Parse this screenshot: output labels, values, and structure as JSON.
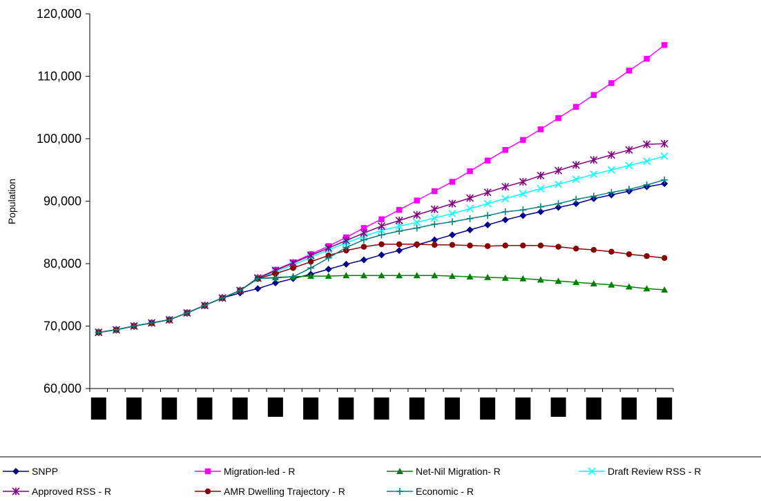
{
  "chart_data": {
    "type": "line",
    "title": "",
    "xlabel": "",
    "ylabel": "Population",
    "ylim": [
      60000,
      120000
    ],
    "yticks": [
      60000,
      70000,
      80000,
      90000,
      100000,
      110000,
      120000
    ],
    "ytick_labels": [
      "60,000",
      "70,000",
      "80,000",
      "90,000",
      "100,000",
      "110,000",
      "120,000"
    ],
    "x_tick_labels_redacted": true,
    "x_points": 33,
    "grid": false,
    "legend_position": "bottom",
    "series": [
      {
        "name": "SNPP",
        "color": "#00008b",
        "marker": "diamond",
        "values": [
          69000,
          69400,
          70000,
          70500,
          71000,
          72100,
          73300,
          74500,
          75300,
          76000,
          76900,
          77600,
          78300,
          79100,
          79900,
          80600,
          81400,
          82100,
          83000,
          83800,
          84600,
          85400,
          86200,
          87000,
          87700,
          88300,
          89000,
          89600,
          90400,
          91000,
          91600,
          92300,
          92800
        ]
      },
      {
        "name": "Migration-led - R",
        "color": "#ff00ff",
        "marker": "square",
        "values": [
          69000,
          69400,
          70000,
          70500,
          71000,
          72100,
          73300,
          74500,
          75700,
          77700,
          79000,
          80200,
          81500,
          82800,
          84200,
          85700,
          87100,
          88600,
          90100,
          91600,
          93100,
          94800,
          96500,
          98200,
          99800,
          101500,
          103300,
          105100,
          107000,
          108900,
          110900,
          112800,
          115000
        ]
      },
      {
        "name": "Net-Nil Migration- R",
        "color": "#008000",
        "marker": "triangle",
        "values": [
          69000,
          69400,
          70000,
          70500,
          71000,
          72100,
          73300,
          74500,
          75700,
          77600,
          77800,
          77900,
          78000,
          78000,
          78100,
          78100,
          78100,
          78100,
          78100,
          78100,
          78000,
          77900,
          77800,
          77700,
          77600,
          77400,
          77200,
          77000,
          76800,
          76600,
          76300,
          76000,
          75800
        ]
      },
      {
        "name": "Draft Review RSS - R",
        "color": "#00ffff",
        "marker": "x",
        "values": [
          69000,
          69400,
          70000,
          70500,
          71000,
          72100,
          73300,
          74500,
          75700,
          77600,
          78700,
          79800,
          81000,
          82200,
          83300,
          84400,
          85300,
          86000,
          86600,
          87300,
          88000,
          88800,
          89600,
          90400,
          91200,
          92000,
          92700,
          93500,
          94300,
          95000,
          95700,
          96400,
          97200
        ]
      },
      {
        "name": "Approved RSS - R",
        "color": "#800080",
        "marker": "star",
        "values": [
          69000,
          69400,
          70000,
          70500,
          71000,
          72100,
          73300,
          74500,
          75700,
          77700,
          78900,
          80100,
          81300,
          82500,
          83700,
          84900,
          86000,
          86900,
          87800,
          88700,
          89600,
          90500,
          91400,
          92300,
          93100,
          94100,
          94900,
          95800,
          96600,
          97400,
          98200,
          99100,
          99200
        ]
      },
      {
        "name": "AMR Dwelling Trajectory - R",
        "color": "#8b0000",
        "marker": "circle",
        "values": [
          69000,
          69400,
          70000,
          70500,
          71000,
          72100,
          73300,
          74500,
          75700,
          77600,
          78400,
          79300,
          80300,
          81300,
          82100,
          82700,
          83100,
          83100,
          83100,
          83000,
          83000,
          82900,
          82800,
          82900,
          82900,
          82900,
          82700,
          82400,
          82200,
          81900,
          81500,
          81200,
          80900
        ]
      },
      {
        "name": "Economic - R",
        "color": "#008080",
        "marker": "plus",
        "values": [
          69000,
          69400,
          70000,
          70500,
          71000,
          72100,
          73300,
          74500,
          75700,
          77600,
          77700,
          77900,
          79300,
          80900,
          82600,
          83800,
          84600,
          85200,
          85700,
          86300,
          86700,
          87200,
          87700,
          88300,
          88600,
          89100,
          89600,
          90300,
          90800,
          91400,
          91900,
          92600,
          93400
        ]
      }
    ]
  }
}
